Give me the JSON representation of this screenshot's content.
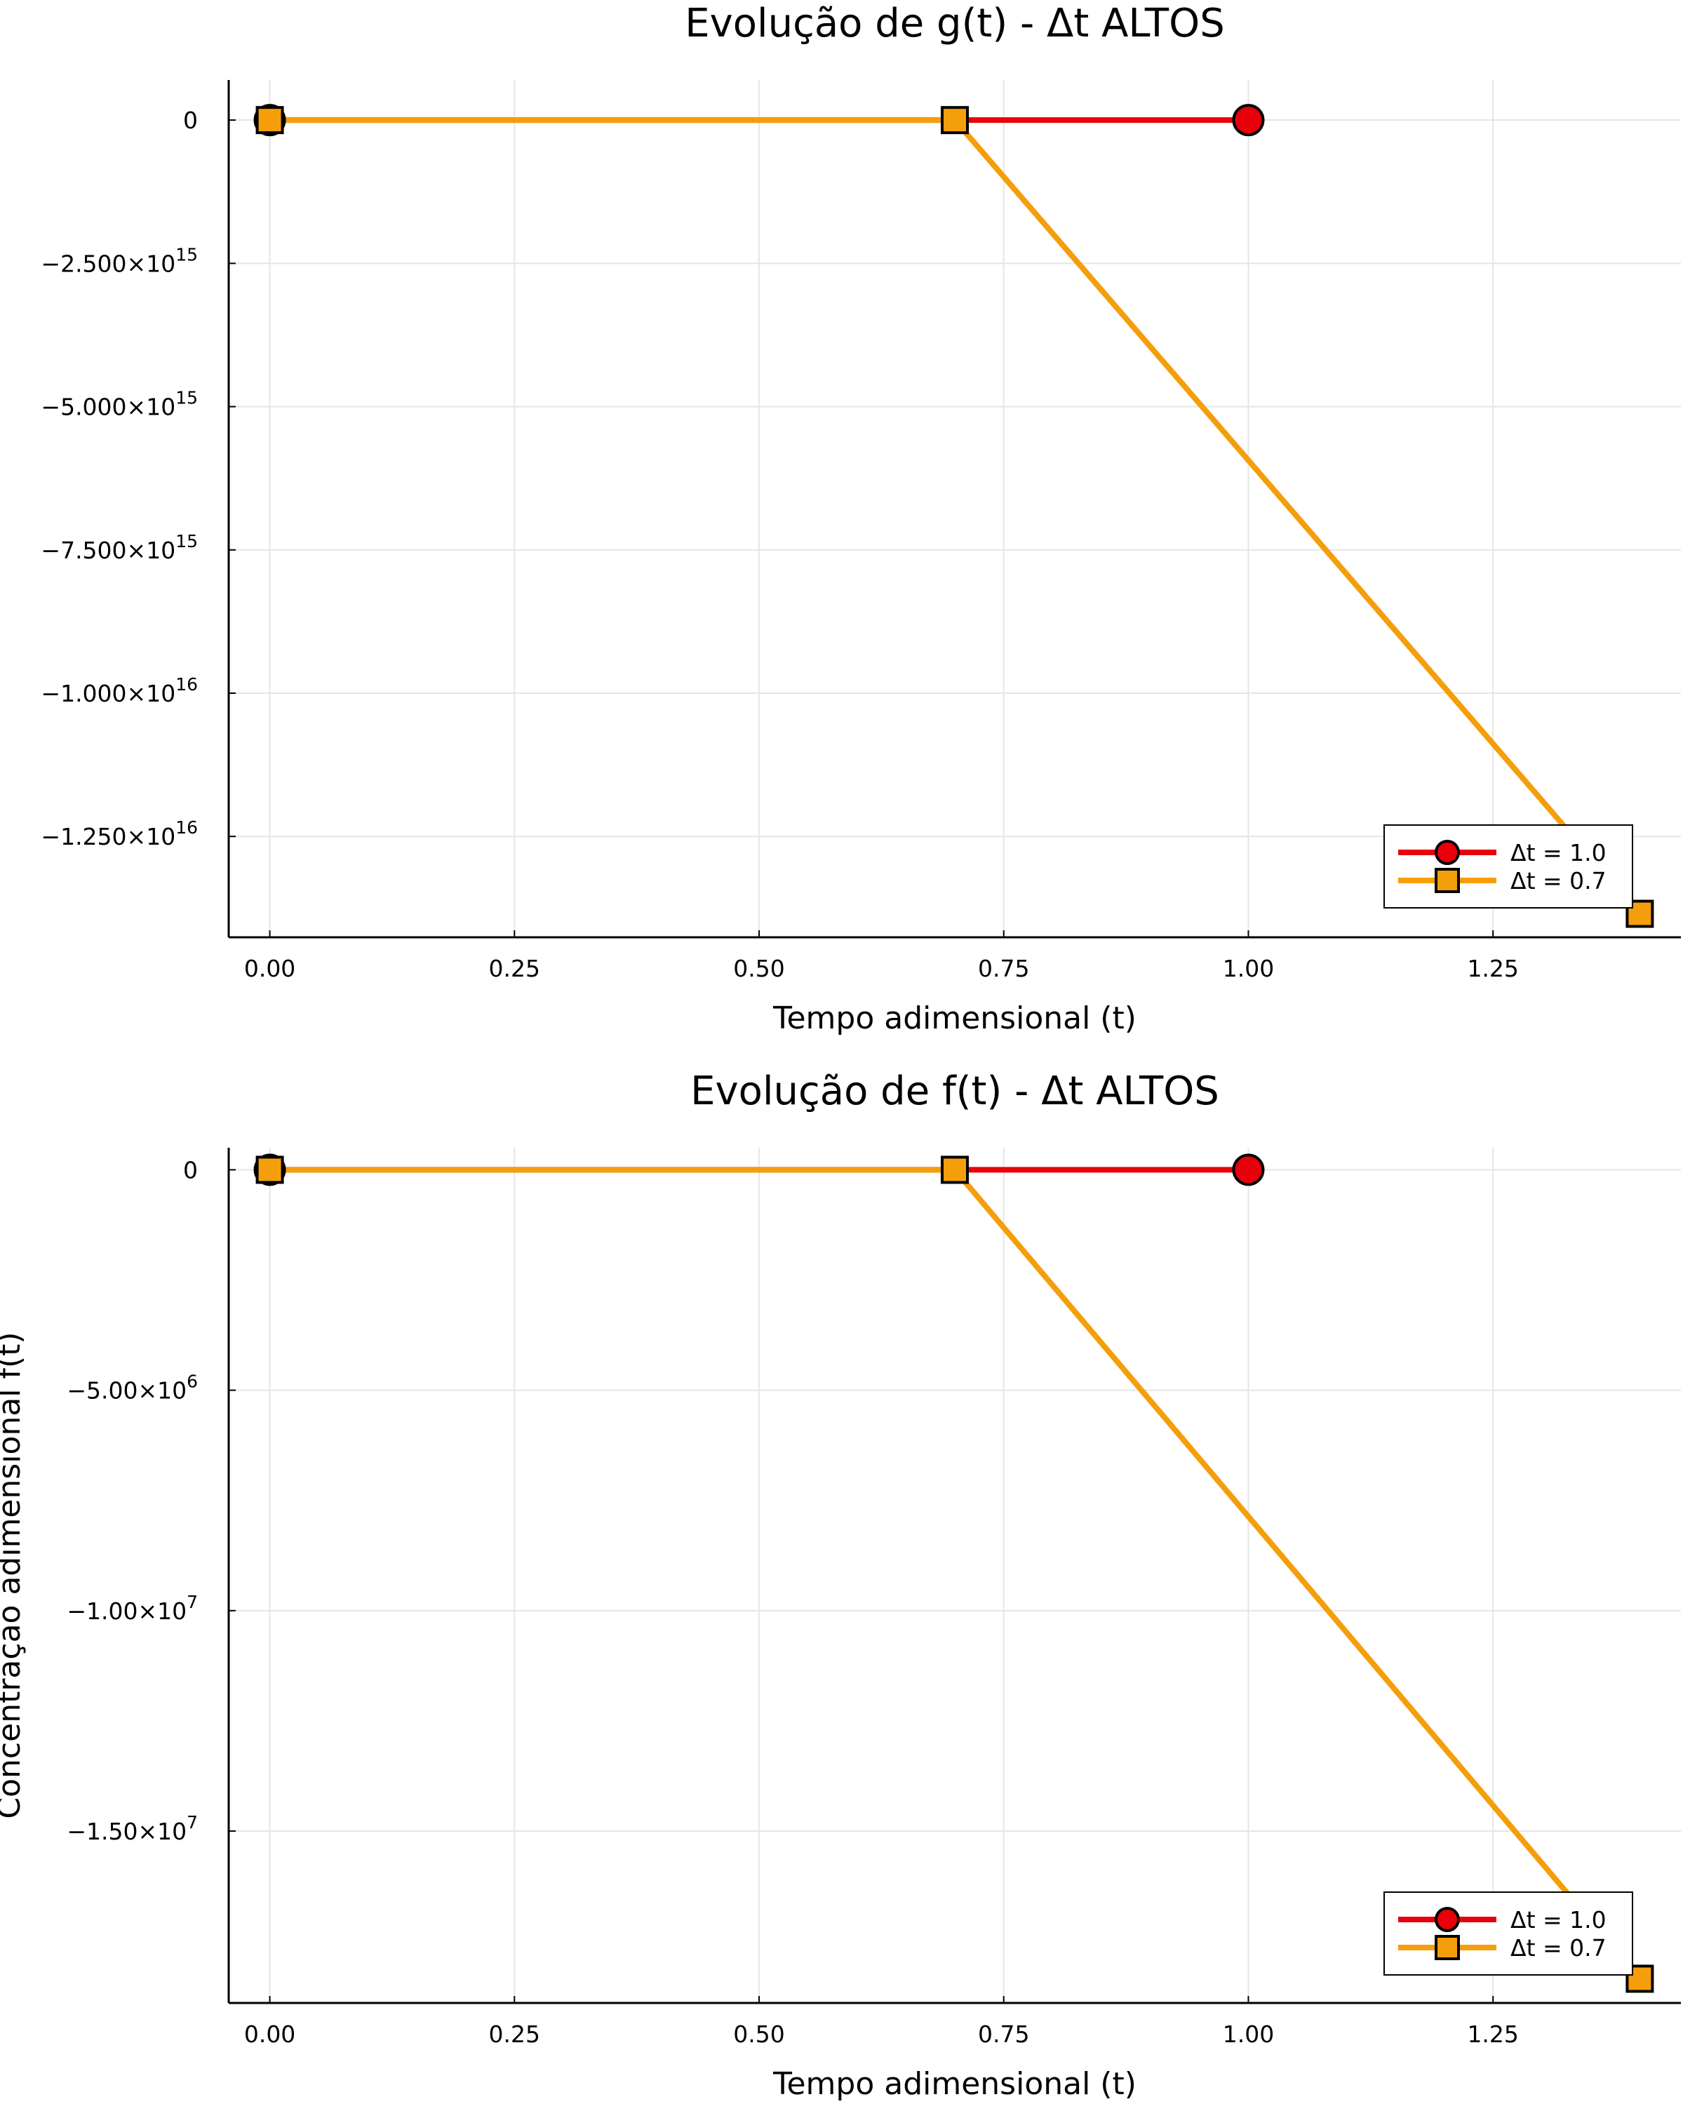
{
  "colors": {
    "series_1": "#e8000b",
    "series_2": "#f59e0b",
    "grid": "#e5e5e5",
    "axis": "#000000"
  },
  "chart_data": [
    {
      "type": "line",
      "title": "Evolução de g(t) - Δt ALTOS",
      "xlabel": "Tempo adimensional (t)",
      "ylabel": "",
      "xlim": [
        -0.042,
        1.442
      ],
      "ylim": [
        -14260000000000000,
        700000000000000
      ],
      "grid": true,
      "legend_position": "bottom-right",
      "x_ticks": [
        {
          "value": 0,
          "label": "0.00"
        },
        {
          "value": 0.25,
          "label": "0.25"
        },
        {
          "value": 0.5,
          "label": "0.50"
        },
        {
          "value": 0.75,
          "label": "0.75"
        },
        {
          "value": 1.0,
          "label": "1.00"
        },
        {
          "value": 1.25,
          "label": "1.25"
        }
      ],
      "y_ticks": [
        {
          "value": 0,
          "mant": "0",
          "exp": ""
        },
        {
          "value": -2500000000000000,
          "mant": "−2.500×10",
          "exp": "15"
        },
        {
          "value": -5000000000000000,
          "mant": "−5.000×10",
          "exp": "15"
        },
        {
          "value": -7500000000000000,
          "mant": "−7.500×10",
          "exp": "15"
        },
        {
          "value": -10000000000000000,
          "mant": "−1.000×10",
          "exp": "16"
        },
        {
          "value": -12500000000000000,
          "mant": "−1.250×10",
          "exp": "16"
        }
      ],
      "series": [
        {
          "name": "Δt = 1.0",
          "marker": "circle",
          "color": "#e8000b",
          "x": [
            0,
            1.0
          ],
          "y": [
            0,
            0
          ]
        },
        {
          "name": "Δt = 0.7",
          "marker": "square",
          "color": "#f59e0b",
          "x": [
            0,
            0.7,
            1.4
          ],
          "y": [
            0,
            0,
            -13850000000000000
          ]
        }
      ]
    },
    {
      "type": "line",
      "title": "Evolução de f(t) - Δt ALTOS",
      "xlabel": "Tempo adimensional (t)",
      "ylabel": "Concentração adimensional f(t)",
      "xlim": [
        -0.042,
        1.442
      ],
      "ylim": [
        -18900000,
        500000
      ],
      "grid": true,
      "legend_position": "bottom-right",
      "x_ticks": [
        {
          "value": 0,
          "label": "0.00"
        },
        {
          "value": 0.25,
          "label": "0.25"
        },
        {
          "value": 0.5,
          "label": "0.50"
        },
        {
          "value": 0.75,
          "label": "0.75"
        },
        {
          "value": 1.0,
          "label": "1.00"
        },
        {
          "value": 1.25,
          "label": "1.25"
        }
      ],
      "y_ticks": [
        {
          "value": 0,
          "mant": "0",
          "exp": ""
        },
        {
          "value": -5000000,
          "mant": "−5.00×10",
          "exp": "6"
        },
        {
          "value": -10000000,
          "mant": "−1.00×10",
          "exp": "7"
        },
        {
          "value": -15000000,
          "mant": "−1.50×10",
          "exp": "7"
        }
      ],
      "series": [
        {
          "name": "Δt = 1.0",
          "marker": "circle",
          "color": "#e8000b",
          "x": [
            0,
            1.0
          ],
          "y": [
            0,
            0
          ]
        },
        {
          "name": "Δt = 0.7",
          "marker": "square",
          "color": "#f59e0b",
          "x": [
            0,
            0.7,
            1.4
          ],
          "y": [
            0,
            0,
            -18350000
          ]
        }
      ]
    }
  ]
}
